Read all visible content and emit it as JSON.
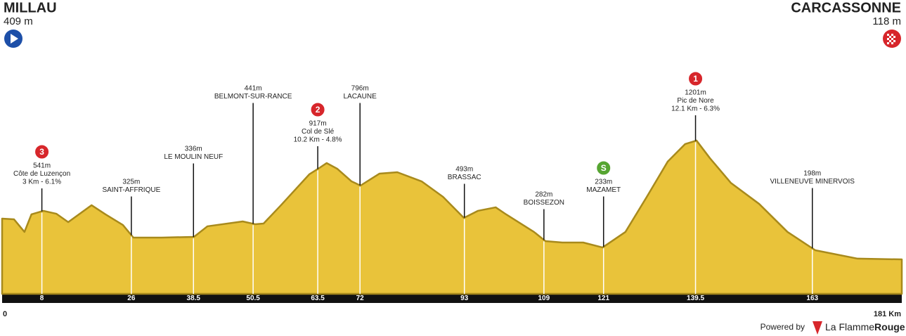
{
  "chart_data": {
    "type": "area",
    "color": "#e9c33a",
    "edge_color": "#a88a1c",
    "start": {
      "name": "MILLAU",
      "elevation": {
        "value": 409,
        "label": "409 m"
      }
    },
    "finish": {
      "name": "CARCASSONNE",
      "elevation": {
        "value": 118,
        "label": "118 m"
      }
    },
    "x": [
      0,
      2.4,
      4.5,
      5.9,
      8.3,
      10.9,
      13.3,
      18.0,
      20.8,
      24.3,
      26.4,
      32.1,
      38.6,
      41.3,
      48.4,
      50.9,
      52.6,
      56.1,
      61.8,
      63.6,
      65.3,
      67.4,
      70.3,
      72.1,
      75.9,
      79.5,
      84.4,
      88.7,
      92.9,
      95.7,
      99.3,
      101.4,
      107.0,
      109.3,
      112.7,
      116.9,
      120.8,
      125.4,
      129.7,
      133.9,
      137.4,
      139.7,
      142.4,
      146.6,
      152.3,
      158.0,
      163.6,
      172.1,
      181
    ],
    "values": [
      494,
      487,
      373,
      532,
      564,
      538,
      462,
      615,
      532,
      436,
      322,
      322,
      328,
      424,
      468,
      443,
      449,
      615,
      895,
      946,
      997,
      946,
      831,
      793,
      901,
      914,
      831,
      691,
      500,
      564,
      596,
      532,
      373,
      290,
      277,
      277,
      232,
      373,
      691,
      1010,
      1169,
      1201,
      1041,
      818,
      627,
      373,
      207,
      131,
      124
    ],
    "xticks": [
      8,
      26,
      38.5,
      50.5,
      63.5,
      72,
      93,
      109,
      121,
      139.5,
      163
    ],
    "end_ticks": [
      0,
      {
        "value": 181,
        "label": "181 Km"
      }
    ],
    "waypoints": [
      {
        "elevation": {
          "value": 541,
          "label": "541m"
        },
        "lines": [
          "Côte de Luzençon",
          "3 Km - 6.1%"
        ],
        "badge": "3",
        "badge_color": "#d7262b"
      },
      {
        "elevation": {
          "value": 325,
          "label": "325m"
        },
        "lines": [
          "SAINT-AFFRIQUE"
        ]
      },
      {
        "elevation": {
          "value": 336,
          "label": "336m"
        },
        "lines": [
          "LE MOULIN NEUF"
        ]
      },
      {
        "elevation": {
          "value": 441,
          "label": "441m"
        },
        "lines": [
          "BELMONT-SUR-RANCE"
        ]
      },
      {
        "elevation": {
          "value": 917,
          "label": "917m"
        },
        "lines": [
          "Col de Slé",
          "10.2 Km - 4.8%"
        ],
        "badge": "2",
        "badge_color": "#d7262b"
      },
      {
        "elevation": {
          "value": 796,
          "label": "796m"
        },
        "lines": [
          "LACAUNE"
        ]
      },
      {
        "elevation": {
          "value": 493,
          "label": "493m"
        },
        "lines": [
          "BRASSAC"
        ]
      },
      {
        "elevation": {
          "value": 282,
          "label": "282m"
        },
        "lines": [
          "BOISSEZON"
        ]
      },
      {
        "elevation": {
          "value": 233,
          "label": "233m"
        },
        "lines": [
          "MAZAMET"
        ],
        "badge": "S",
        "badge_color": "#56a531"
      },
      {
        "elevation": {
          "value": 1201,
          "label": "1201m"
        },
        "lines": [
          "Pic de Nore",
          "12.1 Km - 6.3%"
        ],
        "badge": "1",
        "badge_color": "#d7262b"
      },
      {
        "elevation": {
          "value": 198,
          "label": "198m"
        },
        "lines": [
          "VILLENEUVE MINERVOIS"
        ]
      }
    ],
    "footer": {
      "prefix": "Powered by",
      "brand": "La Flamme",
      "brand_bold": "Rouge"
    }
  }
}
